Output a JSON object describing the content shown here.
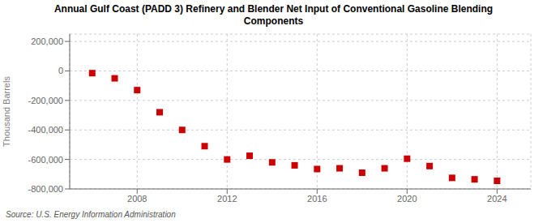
{
  "chart_data": {
    "type": "scatter",
    "title": "Annual Gulf Coast (PADD 3) Refinery and Blender Net Input of Conventional Gasoline Blending\nComponents",
    "ylabel": "Thousand Barrels",
    "annotations": [
      "Source: U.S. Energy Information Administration"
    ],
    "x": [
      2006,
      2007,
      2008,
      2009,
      2010,
      2011,
      2012,
      2013,
      2014,
      2015,
      2016,
      2017,
      2018,
      2019,
      2020,
      2021,
      2022,
      2023,
      2024
    ],
    "values": [
      -15000,
      -50000,
      -130000,
      -280000,
      -400000,
      -510000,
      -600000,
      -575000,
      -620000,
      -640000,
      -665000,
      -660000,
      -690000,
      -660000,
      -595000,
      -645000,
      -725000,
      -735000,
      -745000
    ],
    "color": "#cc0000",
    "marker": "square",
    "grid": true,
    "xlim": [
      2005.0,
      2025.5
    ],
    "xticks": [
      2008,
      2012,
      2016,
      2020,
      2024
    ],
    "ylim": [
      -800000,
      250000
    ],
    "yticks": [
      {
        "value": -800000,
        "label": "-800,000"
      },
      {
        "value": -600000,
        "label": "-600,000"
      },
      {
        "value": -400000,
        "label": "-400,000"
      },
      {
        "value": -200000,
        "label": "-200,000"
      },
      0,
      {
        "value": 200000,
        "label": "200,000"
      }
    ]
  }
}
